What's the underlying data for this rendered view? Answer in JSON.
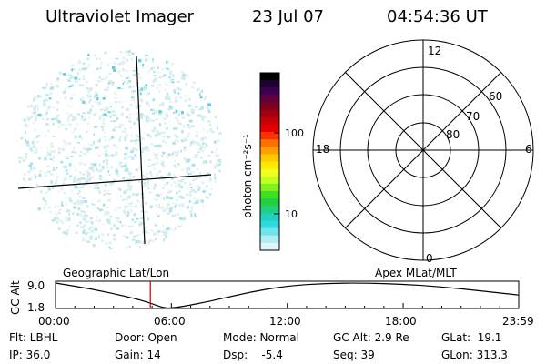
{
  "header": {
    "instrument": "Ultraviolet Imager",
    "date": "23 Jul 07",
    "time": "04:54:36 UT"
  },
  "colorbar": {
    "unit_label": "photon cm⁻²s⁻¹",
    "ticks": [
      "100",
      "10"
    ],
    "colors": [
      "#000000",
      "#200030",
      "#400050",
      "#600040",
      "#800020",
      "#a00010",
      "#c80008",
      "#e80000",
      "#ff3000",
      "#ff7000",
      "#ffa000",
      "#ffc800",
      "#ffe800",
      "#f0ff20",
      "#c0ff20",
      "#80f020",
      "#40e020",
      "#20d040",
      "#20d080",
      "#20d0c0",
      "#30d8e0",
      "#70e4ec",
      "#b0eef2",
      "#e0f6f8"
    ]
  },
  "polar": {
    "lat_labels": [
      "60",
      "70",
      "80"
    ],
    "mlt_labels": {
      "top": "12",
      "left": "18",
      "right": "6",
      "bottom": "0"
    }
  },
  "strip": {
    "y_axis_label": "GC Alt",
    "y_ticks": [
      "9.0",
      "1.8"
    ],
    "left_title": "Geographic Lat/Lon",
    "right_title": "Apex MLat/MLT",
    "x_ticks": [
      "00:00",
      "06:00",
      "12:00",
      "18:00",
      "23:59"
    ]
  },
  "chart_data": {
    "type": "line",
    "title": "",
    "xlabel": "",
    "ylabel": "GC Alt",
    "ylim": [
      1.8,
      9.0
    ],
    "xlim_hours": [
      0,
      23.98
    ],
    "x": [
      0,
      2,
      4,
      5,
      5.5,
      6,
      8,
      10,
      12,
      14,
      16,
      18,
      20,
      22,
      23.98
    ],
    "values": [
      9.0,
      7.2,
      4.8,
      3.2,
      2.1,
      1.8,
      3.8,
      6.4,
      8.2,
      8.95,
      9.0,
      8.7,
      7.9,
      6.8,
      5.6
    ],
    "marker_hour": 4.91,
    "marker_color": "#cc0000"
  },
  "footer": {
    "flt": "Flt: LBHL",
    "ip": "IP: 36.0",
    "door": "Door: Open",
    "gain": "Gain: 14",
    "mode": "Mode: Normal",
    "dsp": "Dsp:    -5.4",
    "gcalt": "GC Alt: 2.9 Re",
    "seq": "Seq: 39",
    "glat": "GLat:  19.1",
    "glon": "GLon: 313.3"
  }
}
